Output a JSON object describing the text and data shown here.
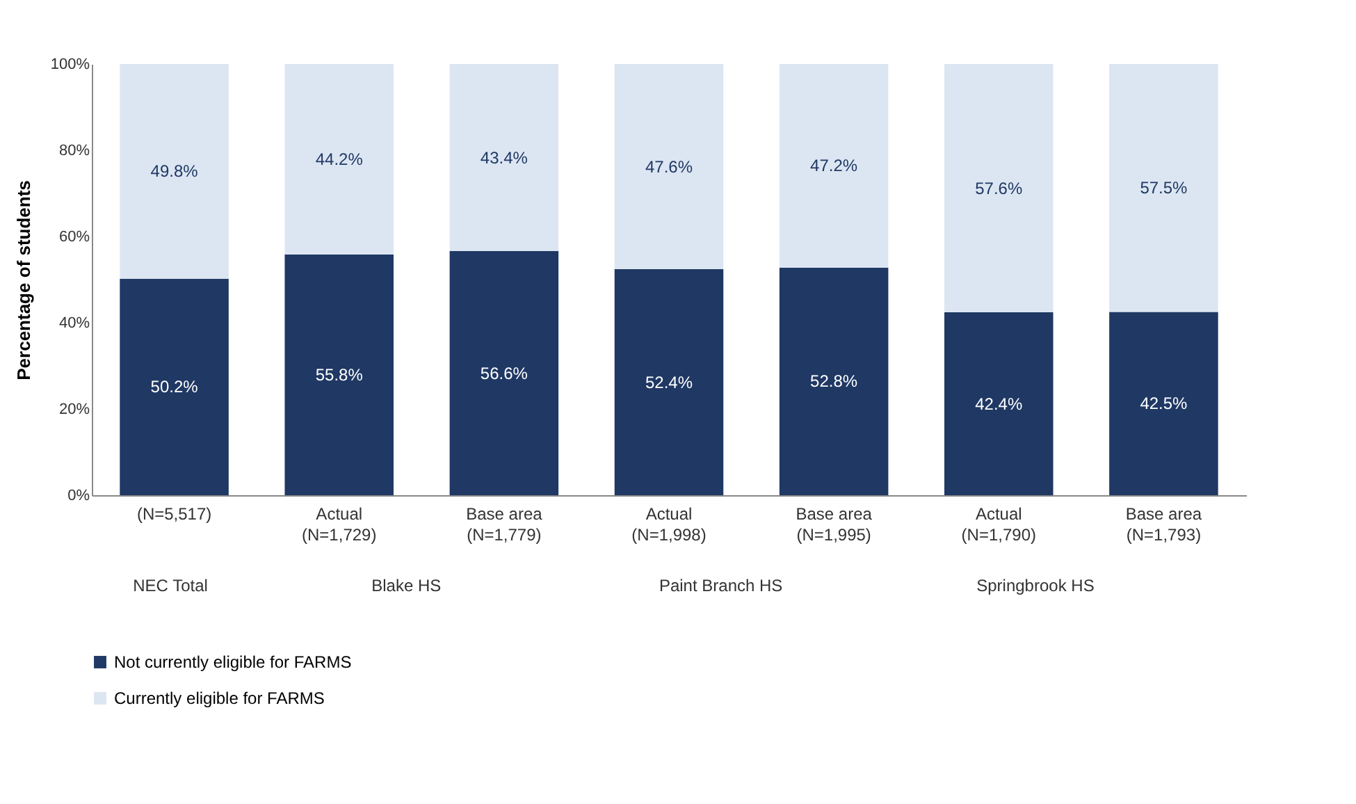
{
  "chart_data": {
    "type": "bar",
    "stacked": true,
    "ylabel": "Percentage  of students",
    "categories": [
      "(N=5,517)",
      "Actual\n(N=1,729)",
      "Base area\n(N=1,779)",
      "Actual\n(N=1,998)",
      "Base area\n(N=1,995)",
      "Actual\n(N=1,790)",
      "Base area\n(N=1,793)"
    ],
    "series": [
      {
        "name": "Not currently eligible for FARMS",
        "color": "#1f3864",
        "values": [
          50.2,
          55.8,
          56.6,
          52.4,
          52.8,
          42.4,
          42.5
        ]
      },
      {
        "name": "Currently eligible for FARMS",
        "color": "#dce6f2",
        "values": [
          49.8,
          44.2,
          43.4,
          47.6,
          47.2,
          57.6,
          57.5
        ]
      }
    ],
    "value_labels": [
      [
        "50.2%",
        "55.8%",
        "56.6%",
        "52.4%",
        "52.8%",
        "42.4%",
        "42.5%"
      ],
      [
        "49.8%",
        "44.2%",
        "43.4%",
        "47.6%",
        "47.2%",
        "57.6%",
        "57.5%"
      ]
    ],
    "annotations": [
      "NEC Total",
      "Blake HS",
      "Paint Branch HS",
      "Springbrook HS"
    ],
    "ylim": [
      0,
      100
    ],
    "yticks": [
      {
        "value": 0,
        "label": "0%"
      },
      {
        "value": 20,
        "label": "20%"
      },
      {
        "value": 40,
        "label": "40%"
      },
      {
        "value": 60,
        "label": "60%"
      },
      {
        "value": 80,
        "label": "80%"
      },
      {
        "value": 100,
        "label": "100%"
      }
    ],
    "grid": false,
    "legend": "bottom left"
  }
}
